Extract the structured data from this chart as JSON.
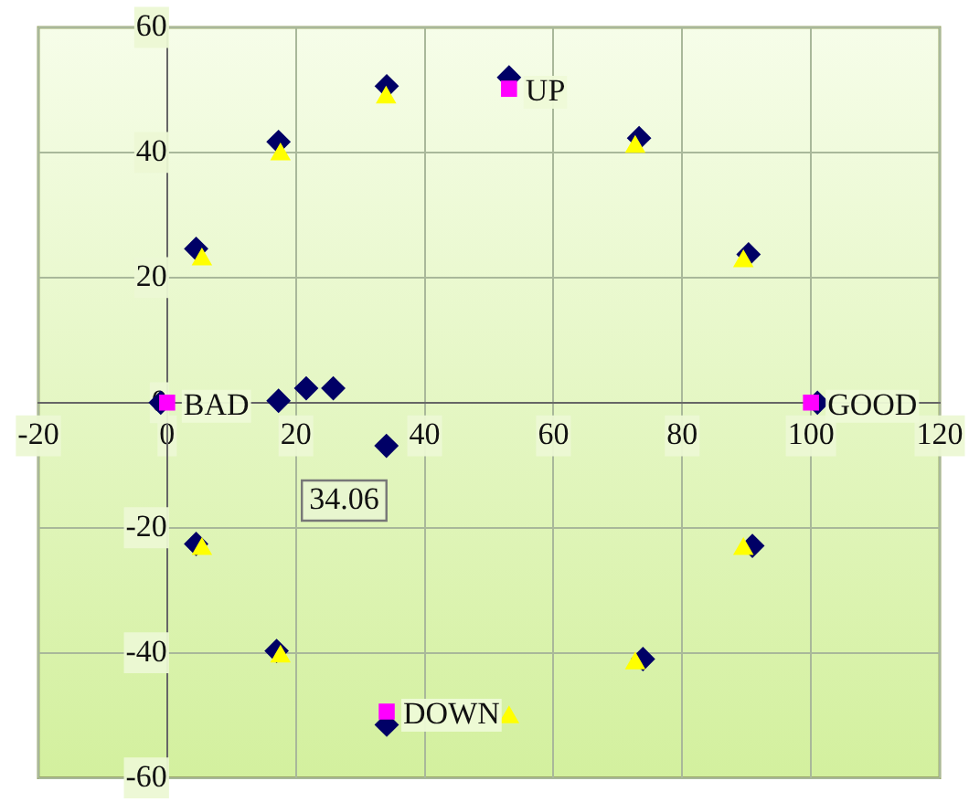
{
  "chart_data": {
    "type": "scatter",
    "xlim": [
      -20,
      120
    ],
    "ylim": [
      -60,
      60
    ],
    "xticks": [
      -20,
      0,
      20,
      40,
      60,
      80,
      100,
      120
    ],
    "yticks": [
      -60,
      -40,
      -20,
      0,
      20,
      40,
      60
    ],
    "grid": true,
    "legend": false,
    "series": [
      {
        "color": "#000066",
        "marker": "diamond",
        "x": [
          -1,
          4.5,
          17.3,
          34.1,
          53.1,
          73.3,
          90.3,
          101,
          90.9,
          73.9,
          34.1,
          17,
          4.5,
          17.3,
          21.6,
          25.8,
          34.06
        ],
        "values": [
          0,
          24.6,
          41.7,
          50.6,
          52,
          42.3,
          23.7,
          0,
          -22.9,
          -41,
          -51.5,
          -39.7,
          -22.6,
          0.3,
          2.3,
          2.3,
          -6.9
        ]
      },
      {
        "color": "#ffff00",
        "marker": "triangle",
        "x": [
          5.4,
          17.6,
          34,
          72.7,
          89.5,
          89.5,
          72.7,
          53.1,
          17.6,
          5.4
        ],
        "values": [
          22.9,
          39.7,
          48.8,
          40.9,
          22.6,
          -23.4,
          -41.7,
          -50.3,
          -40.6,
          -23.4
        ]
      },
      {
        "color": "#ff00ff",
        "marker": "square",
        "x": [
          0,
          53.1,
          100,
          34.1
        ],
        "values": [
          0,
          50.2,
          0,
          -49.4
        ]
      }
    ],
    "annotations": [
      {
        "text": "BAD",
        "x": 0,
        "y": 0
      },
      {
        "text": "UP",
        "x": 53.1,
        "y": 50.2
      },
      {
        "text": "GOOD",
        "x": 100,
        "y": 0
      },
      {
        "text": "DOWN",
        "x": 34.1,
        "y": -49.4
      },
      {
        "text": "34.06",
        "x": 34.06,
        "y": -6.9
      }
    ]
  }
}
